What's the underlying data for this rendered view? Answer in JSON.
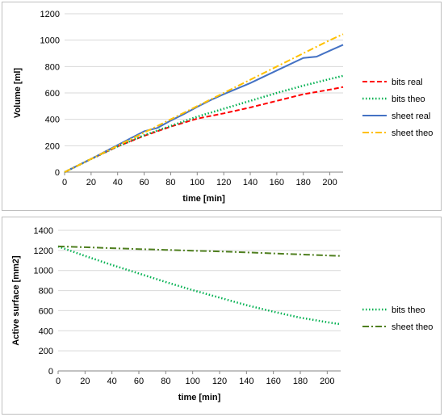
{
  "chart_data": [
    {
      "type": "line",
      "xlabel": "time [min]",
      "ylabel": "Volume [ml]",
      "xlim": [
        0,
        210
      ],
      "ylim": [
        0,
        1200
      ],
      "xticks": [
        0,
        20,
        40,
        60,
        80,
        100,
        120,
        140,
        160,
        180,
        200
      ],
      "yticks": [
        0,
        200,
        400,
        600,
        800,
        1000,
        1200
      ],
      "grid": "horizontal",
      "legend_position": "right",
      "series": [
        {
          "name": "bits real",
          "color": "#ff0000",
          "style": "dashed",
          "x": [
            0,
            20,
            40,
            60,
            80,
            100,
            120,
            140,
            160,
            180,
            200,
            210
          ],
          "y": [
            0,
            100,
            195,
            275,
            345,
            405,
            445,
            490,
            540,
            590,
            625,
            645
          ]
        },
        {
          "name": "bits theo",
          "color": "#00b050",
          "style": "dotted",
          "x": [
            0,
            20,
            40,
            60,
            80,
            100,
            120,
            140,
            160,
            180,
            200,
            210
          ],
          "y": [
            0,
            100,
            195,
            280,
            350,
            420,
            480,
            540,
            600,
            655,
            705,
            730
          ]
        },
        {
          "name": "sheet real",
          "color": "#4472c4",
          "style": "solid",
          "x": [
            0,
            20,
            40,
            60,
            70,
            80,
            90,
            100,
            110,
            120,
            140,
            160,
            180,
            190,
            200,
            210
          ],
          "y": [
            0,
            100,
            205,
            310,
            335,
            390,
            440,
            495,
            545,
            590,
            675,
            770,
            865,
            875,
            920,
            965
          ]
        },
        {
          "name": "sheet theo",
          "color": "#ffc000",
          "style": "dashdot",
          "x": [
            0,
            20,
            40,
            60,
            80,
            100,
            120,
            140,
            160,
            180,
            200,
            210
          ],
          "y": [
            0,
            100,
            200,
            300,
            400,
            500,
            600,
            700,
            800,
            900,
            1000,
            1045
          ]
        }
      ]
    },
    {
      "type": "line",
      "xlabel": "time [min]",
      "ylabel": "Active surface [mm2]",
      "xlim": [
        0,
        210
      ],
      "ylim": [
        0,
        1400
      ],
      "xticks": [
        0,
        20,
        40,
        60,
        80,
        100,
        120,
        140,
        160,
        180,
        200
      ],
      "yticks": [
        0,
        200,
        400,
        600,
        800,
        1000,
        1200,
        1400
      ],
      "grid": "horizontal",
      "legend_position": "right",
      "series": [
        {
          "name": "bits theo",
          "color": "#00b050",
          "style": "dotted",
          "x": [
            0,
            20,
            40,
            60,
            80,
            100,
            120,
            140,
            160,
            180,
            200,
            210
          ],
          "y": [
            1240,
            1145,
            1055,
            970,
            885,
            805,
            730,
            655,
            590,
            530,
            485,
            465
          ]
        },
        {
          "name": "sheet theo",
          "color": "#4f7f1f",
          "style": "dashdot",
          "x": [
            0,
            20,
            40,
            60,
            80,
            100,
            120,
            140,
            160,
            180,
            200,
            210
          ],
          "y": [
            1240,
            1232,
            1222,
            1213,
            1205,
            1197,
            1190,
            1180,
            1170,
            1160,
            1150,
            1145
          ]
        }
      ]
    }
  ]
}
